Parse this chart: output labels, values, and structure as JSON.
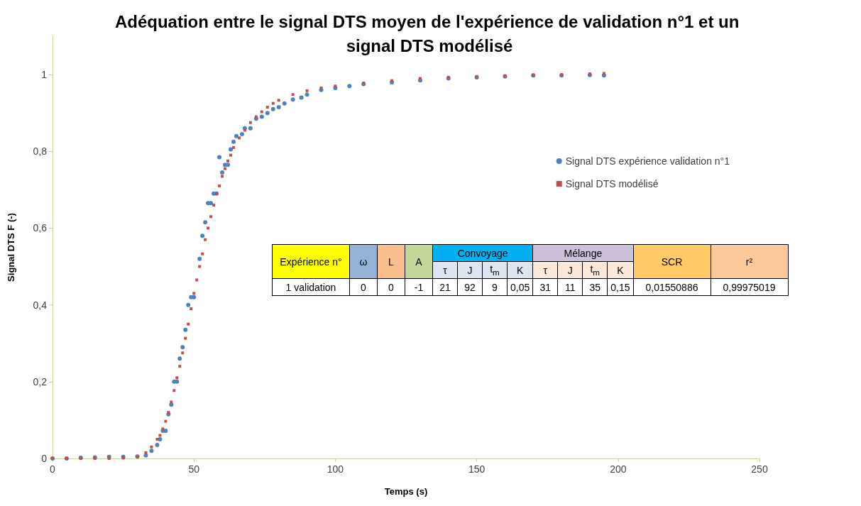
{
  "chart_data": {
    "type": "scatter",
    "title": "Adéquation entre le signal DTS moyen de l'expérience de validation n°1 et un signal DTS modélisé",
    "xlabel": "Temps (s)",
    "ylabel": "Signal DTS F (-)",
    "xlim": [
      0,
      250
    ],
    "xticks": [
      0,
      50,
      100,
      150,
      200,
      250
    ],
    "ylim": [
      0,
      1.1
    ],
    "yticks": [
      0,
      {
        "value": 0.2,
        "label": "0,2"
      },
      {
        "value": 0.4,
        "label": "0,4"
      },
      {
        "value": 0.6,
        "label": "0,6"
      },
      {
        "value": 0.8,
        "label": "0,8"
      },
      1
    ],
    "grid": false,
    "legend": "right",
    "series": [
      {
        "name": "Signal DTS expérience validation n°1",
        "color": "#4f81bd",
        "marker": "circle",
        "x": [
          0,
          5,
          10,
          15,
          20,
          25,
          30,
          33,
          35,
          37,
          38,
          39,
          40,
          41,
          42,
          43,
          44,
          45,
          46,
          47,
          48,
          49,
          50,
          52,
          53,
          54,
          55,
          56,
          57,
          58,
          59,
          60,
          61,
          62,
          63,
          64,
          65,
          67,
          68,
          70,
          72,
          74,
          76,
          78,
          80,
          82,
          85,
          88,
          90,
          95,
          100,
          105,
          110,
          120,
          130,
          140,
          150,
          160,
          170,
          180,
          190,
          195
        ],
        "values": [
          0,
          0,
          0.002,
          0.003,
          0.004,
          0.004,
          0.005,
          0.008,
          0.02,
          0.035,
          0.05,
          0.072,
          0.072,
          0.115,
          0.14,
          0.2,
          0.2,
          0.26,
          0.29,
          0.335,
          0.4,
          0.42,
          0.42,
          0.52,
          0.58,
          0.615,
          0.665,
          0.665,
          0.69,
          0.69,
          0.785,
          0.745,
          0.765,
          0.765,
          0.805,
          0.825,
          0.84,
          0.845,
          0.86,
          0.86,
          0.885,
          0.89,
          0.9,
          0.91,
          0.915,
          0.925,
          0.935,
          0.94,
          0.948,
          0.96,
          0.965,
          0.97,
          0.975,
          0.98,
          0.985,
          0.99,
          0.993,
          0.995,
          0.998,
          0.998,
          0.999,
          0.998
        ]
      },
      {
        "name": "Signal DTS modélisé",
        "color": "#c0504d",
        "marker": "square",
        "x": [
          0,
          5,
          10,
          15,
          20,
          25,
          30,
          33,
          35,
          37,
          38,
          39,
          40,
          41,
          42,
          43,
          44,
          45,
          46,
          47,
          48,
          49,
          50,
          51,
          52,
          53,
          54,
          55,
          56,
          57,
          58,
          59,
          60,
          61,
          62,
          63,
          64,
          66,
          68,
          70,
          72,
          74,
          76,
          78,
          80,
          85,
          90,
          95,
          100,
          110,
          120,
          130,
          140,
          150,
          160,
          170,
          180,
          190,
          195
        ],
        "values": [
          0,
          0,
          0,
          0,
          0,
          0.001,
          0.005,
          0.015,
          0.03,
          0.05,
          0.06,
          0.077,
          0.097,
          0.12,
          0.147,
          0.177,
          0.21,
          0.24,
          0.275,
          0.313,
          0.35,
          0.39,
          0.43,
          0.465,
          0.5,
          0.533,
          0.57,
          0.6,
          0.63,
          0.66,
          0.69,
          0.71,
          0.735,
          0.755,
          0.775,
          0.79,
          0.81,
          0.835,
          0.855,
          0.875,
          0.89,
          0.903,
          0.915,
          0.925,
          0.933,
          0.948,
          0.958,
          0.965,
          0.97,
          0.978,
          0.984,
          0.99,
          0.993,
          0.995,
          0.997,
          0.999,
          1,
          1.002,
          1.003
        ]
      }
    ],
    "annotations": [
      "Expérience n°",
      "ω",
      "L",
      "A",
      "Convoyage",
      "Mélange",
      "SCR",
      "r²",
      "τ",
      "J",
      "t$_{m}$",
      "K",
      "τ",
      "J",
      "t$_{m}$",
      "K",
      "1 validation",
      "0",
      "0",
      "-1",
      "21",
      "92",
      "9",
      "0,05",
      "31",
      "11",
      "35",
      "0,15",
      "0,01550886",
      "0,99975019"
    ]
  }
}
